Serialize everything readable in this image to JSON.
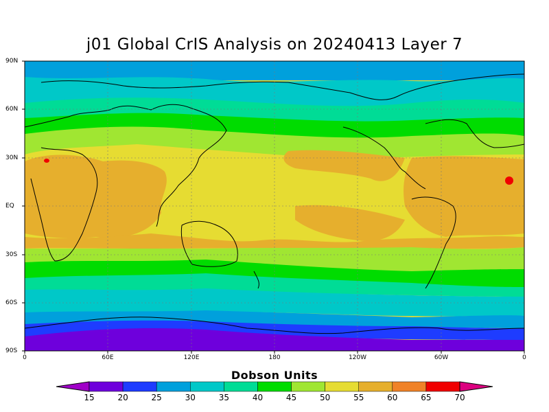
{
  "title": "j01 Global CrIS Analysis on 20240413 Layer 7",
  "y_ticks": [
    "90N",
    "60N",
    "30N",
    "EQ",
    "30S",
    "60S",
    "90S"
  ],
  "x_ticks": [
    "0",
    "60E",
    "120E",
    "180",
    "120W",
    "60W",
    "0"
  ],
  "colorbar": {
    "title": "Dobson Units",
    "labels": [
      "15",
      "20",
      "25",
      "30",
      "35",
      "40",
      "45",
      "50",
      "55",
      "60",
      "65",
      "70"
    ],
    "colors": [
      "#a000c8",
      "#6e00dc",
      "#1e3cff",
      "#00a0dc",
      "#00c8c8",
      "#00dc96",
      "#00dc00",
      "#a0e632",
      "#e6dc32",
      "#e6af2d",
      "#f08228",
      "#f00000",
      "#dc0080"
    ]
  },
  "bands_ocean_color": "#000000",
  "contour_rows": [
    {
      "lat": 90,
      "color": "#00a0dc"
    },
    {
      "lat": 80,
      "color": "#00a0dc"
    },
    {
      "lat": 70,
      "color": "#00c8c8"
    },
    {
      "lat": 62,
      "color": "#00dc96"
    },
    {
      "lat": 55,
      "color": "#00dc00"
    },
    {
      "lat": 48,
      "color": "#a0e632"
    },
    {
      "lat": 40,
      "color": "#e6dc32"
    },
    {
      "lat": 30,
      "color": "#e6af2d"
    },
    {
      "lat": -15,
      "color": "#e6dc32"
    },
    {
      "lat": -30,
      "color": "#a0e632"
    },
    {
      "lat": -38,
      "color": "#00dc00"
    },
    {
      "lat": -45,
      "color": "#00dc96"
    },
    {
      "lat": -52,
      "color": "#00c8c8"
    },
    {
      "lat": -62,
      "color": "#00a0dc"
    },
    {
      "lat": -70,
      "color": "#1e3cff"
    },
    {
      "lat": -76,
      "color": "#6e00dc"
    }
  ]
}
